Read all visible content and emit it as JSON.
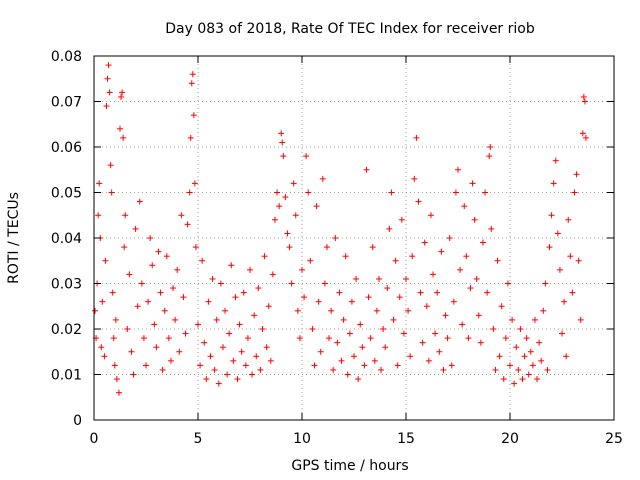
{
  "chart_data": {
    "type": "scatter",
    "title": "Day 083 of 2018, Rate Of TEC Index for receiver riob",
    "xlabel": "GPS time / hours",
    "ylabel": "ROTI / TECUs",
    "xlim": [
      0,
      25
    ],
    "ylim": [
      0,
      0.08
    ],
    "x_ticks": [
      0,
      5,
      10,
      15,
      20,
      25
    ],
    "y_ticks": [
      0,
      0.01,
      0.02,
      0.03,
      0.04,
      0.05,
      0.06,
      0.07,
      0.08
    ],
    "x_tick_labels": [
      "0",
      "5",
      "10",
      "15",
      "20",
      "25"
    ],
    "y_tick_labels": [
      "0",
      "0.01",
      "0.02",
      "0.03",
      "0.04",
      "0.05",
      "0.06",
      "0.07",
      "0.08"
    ],
    "grid": true,
    "marker": "+",
    "color": "#ff0000",
    "series": [
      {
        "points": [
          [
            0.05,
            0.024
          ],
          [
            0.1,
            0.018
          ],
          [
            0.15,
            0.03
          ],
          [
            0.2,
            0.045
          ],
          [
            0.25,
            0.052
          ],
          [
            0.3,
            0.04
          ],
          [
            0.35,
            0.016
          ],
          [
            0.4,
            0.026
          ],
          [
            0.5,
            0.014
          ],
          [
            0.55,
            0.035
          ],
          [
            0.6,
            0.069
          ],
          [
            0.65,
            0.075
          ],
          [
            0.7,
            0.078
          ],
          [
            0.75,
            0.072
          ],
          [
            0.8,
            0.056
          ],
          [
            0.85,
            0.05
          ],
          [
            0.9,
            0.028
          ],
          [
            0.95,
            0.018
          ],
          [
            1.0,
            0.012
          ],
          [
            1.05,
            0.022
          ],
          [
            1.1,
            0.009
          ],
          [
            1.2,
            0.006
          ],
          [
            1.25,
            0.064
          ],
          [
            1.3,
            0.071
          ],
          [
            1.35,
            0.072
          ],
          [
            1.4,
            0.062
          ],
          [
            1.45,
            0.038
          ],
          [
            1.5,
            0.045
          ],
          [
            1.6,
            0.02
          ],
          [
            1.7,
            0.032
          ],
          [
            1.8,
            0.015
          ],
          [
            1.9,
            0.01
          ],
          [
            2.0,
            0.042
          ],
          [
            2.1,
            0.025
          ],
          [
            2.2,
            0.048
          ],
          [
            2.3,
            0.03
          ],
          [
            2.4,
            0.018
          ],
          [
            2.5,
            0.012
          ],
          [
            2.6,
            0.026
          ],
          [
            2.7,
            0.04
          ],
          [
            2.8,
            0.034
          ],
          [
            2.9,
            0.021
          ],
          [
            3.0,
            0.016
          ],
          [
            3.1,
            0.037
          ],
          [
            3.2,
            0.028
          ],
          [
            3.3,
            0.011
          ],
          [
            3.4,
            0.024
          ],
          [
            3.5,
            0.036
          ],
          [
            3.6,
            0.018
          ],
          [
            3.7,
            0.013
          ],
          [
            3.8,
            0.029
          ],
          [
            3.9,
            0.022
          ],
          [
            4.0,
            0.033
          ],
          [
            4.1,
            0.015
          ],
          [
            4.2,
            0.045
          ],
          [
            4.3,
            0.027
          ],
          [
            4.4,
            0.019
          ],
          [
            4.5,
            0.043
          ],
          [
            4.6,
            0.05
          ],
          [
            4.65,
            0.062
          ],
          [
            4.7,
            0.074
          ],
          [
            4.75,
            0.076
          ],
          [
            4.8,
            0.067
          ],
          [
            4.85,
            0.052
          ],
          [
            4.9,
            0.038
          ],
          [
            5.0,
            0.021
          ],
          [
            5.1,
            0.012
          ],
          [
            5.2,
            0.035
          ],
          [
            5.3,
            0.017
          ],
          [
            5.4,
            0.009
          ],
          [
            5.5,
            0.026
          ],
          [
            5.6,
            0.014
          ],
          [
            5.7,
            0.031
          ],
          [
            5.8,
            0.011
          ],
          [
            5.9,
            0.022
          ],
          [
            6.0,
            0.008
          ],
          [
            6.1,
            0.03
          ],
          [
            6.2,
            0.016
          ],
          [
            6.3,
            0.024
          ],
          [
            6.4,
            0.01
          ],
          [
            6.5,
            0.019
          ],
          [
            6.6,
            0.034
          ],
          [
            6.7,
            0.013
          ],
          [
            6.8,
            0.027
          ],
          [
            6.9,
            0.009
          ],
          [
            7.0,
            0.021
          ],
          [
            7.1,
            0.015
          ],
          [
            7.2,
            0.028
          ],
          [
            7.3,
            0.012
          ],
          [
            7.4,
            0.018
          ],
          [
            7.5,
            0.033
          ],
          [
            7.6,
            0.01
          ],
          [
            7.7,
            0.023
          ],
          [
            7.8,
            0.014
          ],
          [
            7.9,
            0.029
          ],
          [
            8.0,
            0.011
          ],
          [
            8.1,
            0.02
          ],
          [
            8.2,
            0.036
          ],
          [
            8.3,
            0.016
          ],
          [
            8.4,
            0.025
          ],
          [
            8.5,
            0.013
          ],
          [
            8.6,
            0.032
          ],
          [
            8.7,
            0.044
          ],
          [
            8.8,
            0.05
          ],
          [
            8.9,
            0.047
          ],
          [
            9.0,
            0.063
          ],
          [
            9.05,
            0.061
          ],
          [
            9.1,
            0.058
          ],
          [
            9.2,
            0.049
          ],
          [
            9.3,
            0.041
          ],
          [
            9.4,
            0.038
          ],
          [
            9.5,
            0.03
          ],
          [
            9.6,
            0.052
          ],
          [
            9.7,
            0.045
          ],
          [
            9.8,
            0.024
          ],
          [
            9.9,
            0.018
          ],
          [
            10.0,
            0.033
          ],
          [
            10.1,
            0.027
          ],
          [
            10.2,
            0.058
          ],
          [
            10.3,
            0.05
          ],
          [
            10.4,
            0.035
          ],
          [
            10.5,
            0.02
          ],
          [
            10.6,
            0.012
          ],
          [
            10.7,
            0.047
          ],
          [
            10.8,
            0.026
          ],
          [
            10.9,
            0.015
          ],
          [
            11.0,
            0.053
          ],
          [
            11.1,
            0.03
          ],
          [
            11.2,
            0.038
          ],
          [
            11.3,
            0.018
          ],
          [
            11.4,
            0.024
          ],
          [
            11.5,
            0.011
          ],
          [
            11.6,
            0.04
          ],
          [
            11.7,
            0.017
          ],
          [
            11.8,
            0.028
          ],
          [
            11.9,
            0.013
          ],
          [
            12.0,
            0.022
          ],
          [
            12.1,
            0.036
          ],
          [
            12.2,
            0.01
          ],
          [
            12.3,
            0.019
          ],
          [
            12.4,
            0.026
          ],
          [
            12.5,
            0.014
          ],
          [
            12.6,
            0.031
          ],
          [
            12.7,
            0.009
          ],
          [
            12.8,
            0.021
          ],
          [
            12.9,
            0.016
          ],
          [
            13.0,
            0.012
          ],
          [
            13.1,
            0.055
          ],
          [
            13.2,
            0.027
          ],
          [
            13.3,
            0.018
          ],
          [
            13.4,
            0.038
          ],
          [
            13.5,
            0.013
          ],
          [
            13.6,
            0.024
          ],
          [
            13.7,
            0.031
          ],
          [
            13.8,
            0.011
          ],
          [
            13.9,
            0.02
          ],
          [
            14.0,
            0.016
          ],
          [
            14.1,
            0.029
          ],
          [
            14.2,
            0.042
          ],
          [
            14.3,
            0.05
          ],
          [
            14.4,
            0.022
          ],
          [
            14.5,
            0.035
          ],
          [
            14.6,
            0.012
          ],
          [
            14.7,
            0.027
          ],
          [
            14.8,
            0.044
          ],
          [
            14.9,
            0.019
          ],
          [
            15.0,
            0.031
          ],
          [
            15.1,
            0.024
          ],
          [
            15.2,
            0.014
          ],
          [
            15.3,
            0.036
          ],
          [
            15.4,
            0.053
          ],
          [
            15.5,
            0.062
          ],
          [
            15.6,
            0.048
          ],
          [
            15.7,
            0.028
          ],
          [
            15.8,
            0.017
          ],
          [
            15.9,
            0.039
          ],
          [
            16.0,
            0.025
          ],
          [
            16.1,
            0.013
          ],
          [
            16.2,
            0.045
          ],
          [
            16.3,
            0.032
          ],
          [
            16.4,
            0.019
          ],
          [
            16.5,
            0.028
          ],
          [
            16.6,
            0.015
          ],
          [
            16.7,
            0.037
          ],
          [
            16.8,
            0.011
          ],
          [
            16.9,
            0.023
          ],
          [
            17.0,
            0.018
          ],
          [
            17.1,
            0.04
          ],
          [
            17.2,
            0.012
          ],
          [
            17.3,
            0.026
          ],
          [
            17.4,
            0.05
          ],
          [
            17.5,
            0.055
          ],
          [
            17.6,
            0.033
          ],
          [
            17.7,
            0.021
          ],
          [
            17.8,
            0.047
          ],
          [
            17.9,
            0.036
          ],
          [
            18.0,
            0.018
          ],
          [
            18.1,
            0.029
          ],
          [
            18.2,
            0.052
          ],
          [
            18.3,
            0.044
          ],
          [
            18.4,
            0.031
          ],
          [
            18.5,
            0.023
          ],
          [
            18.6,
            0.017
          ],
          [
            18.7,
            0.039
          ],
          [
            18.8,
            0.05
          ],
          [
            18.9,
            0.028
          ],
          [
            19.0,
            0.058
          ],
          [
            19.05,
            0.06
          ],
          [
            19.1,
            0.042
          ],
          [
            19.2,
            0.02
          ],
          [
            19.3,
            0.011
          ],
          [
            19.4,
            0.035
          ],
          [
            19.5,
            0.014
          ],
          [
            19.6,
            0.025
          ],
          [
            19.7,
            0.009
          ],
          [
            19.8,
            0.018
          ],
          [
            19.9,
            0.03
          ],
          [
            20.0,
            0.012
          ],
          [
            20.1,
            0.022
          ],
          [
            20.2,
            0.008
          ],
          [
            20.3,
            0.016
          ],
          [
            20.4,
            0.011
          ],
          [
            20.5,
            0.02
          ],
          [
            20.6,
            0.009
          ],
          [
            20.7,
            0.014
          ],
          [
            20.8,
            0.018
          ],
          [
            20.9,
            0.01
          ],
          [
            21.0,
            0.015
          ],
          [
            21.1,
            0.012
          ],
          [
            21.2,
            0.022
          ],
          [
            21.3,
            0.009
          ],
          [
            21.4,
            0.017
          ],
          [
            21.5,
            0.013
          ],
          [
            21.6,
            0.024
          ],
          [
            21.7,
            0.03
          ],
          [
            21.8,
            0.011
          ],
          [
            21.9,
            0.038
          ],
          [
            22.0,
            0.045
          ],
          [
            22.1,
            0.052
          ],
          [
            22.2,
            0.057
          ],
          [
            22.3,
            0.041
          ],
          [
            22.4,
            0.033
          ],
          [
            22.5,
            0.019
          ],
          [
            22.6,
            0.026
          ],
          [
            22.7,
            0.014
          ],
          [
            22.8,
            0.044
          ],
          [
            22.9,
            0.036
          ],
          [
            23.0,
            0.028
          ],
          [
            23.1,
            0.05
          ],
          [
            23.2,
            0.054
          ],
          [
            23.3,
            0.035
          ],
          [
            23.4,
            0.022
          ],
          [
            23.5,
            0.063
          ],
          [
            23.55,
            0.071
          ],
          [
            23.6,
            0.07
          ],
          [
            23.65,
            0.062
          ]
        ]
      }
    ]
  }
}
